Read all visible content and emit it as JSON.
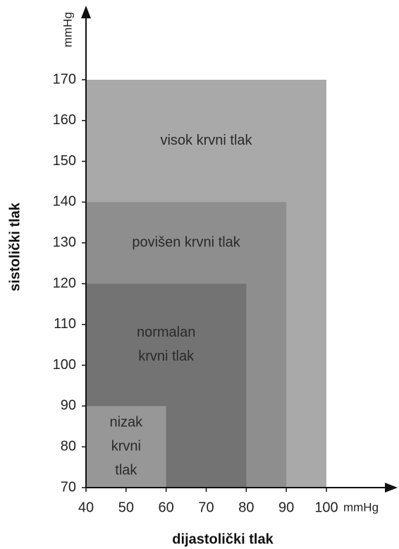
{
  "chart_data": {
    "type": "zones",
    "xlabel": "dijastolički tlak",
    "ylabel": "sistolički tlak",
    "xunit": "mmHg",
    "yunit": "mmHg",
    "xlim": [
      40,
      100
    ],
    "xticks": [
      40,
      50,
      60,
      70,
      80,
      90,
      100
    ],
    "ylim": [
      70,
      170
    ],
    "yticks": [
      70,
      80,
      90,
      100,
      110,
      120,
      130,
      140,
      150,
      160,
      170
    ],
    "series": [
      {
        "name": [
          "visok krvni tlak"
        ],
        "color": "#a9a9a9",
        "x": 100,
        "y": 170
      },
      {
        "name": [
          "povišen krvni tlak"
        ],
        "color": "#8e8e8e",
        "x": 90,
        "y": 140
      },
      {
        "name": [
          "normalan",
          "krvni tlak"
        ],
        "color": "#737373",
        "x": 80,
        "y": 120
      },
      {
        "name": [
          "nizak",
          "krvni",
          "tlak"
        ],
        "color": "#979797",
        "x": 60,
        "y": 90
      }
    ]
  }
}
